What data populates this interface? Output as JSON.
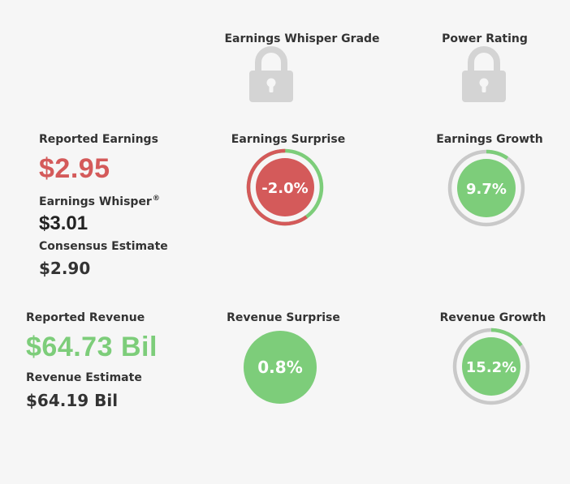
{
  "grades": {
    "whisper_grade_label": "Earnings Whisper Grade",
    "power_rating_label": "Power Rating",
    "lock_icon": "lock-icon"
  },
  "earnings": {
    "reported_label": "Reported Earnings",
    "reported_value": "$2.95",
    "whisper_label": "Earnings Whisper",
    "whisper_mark": "®",
    "whisper_value": "$3.01",
    "consensus_label": "Consensus Estimate",
    "consensus_value": "$2.90",
    "surprise_label": "Earnings Surprise",
    "surprise_value": "-2.0%",
    "surprise_pct": -2.0,
    "growth_label": "Earnings Growth",
    "growth_value": "9.7%",
    "growth_pct": 9.7
  },
  "revenue": {
    "reported_label": "Reported Revenue",
    "reported_value": "$64.73 Bil",
    "estimate_label": "Revenue Estimate",
    "estimate_value": "$64.19 Bil",
    "surprise_label": "Revenue Surprise",
    "surprise_value": "0.8%",
    "surprise_pct": 0.8,
    "growth_label": "Revenue Growth",
    "growth_value": "15.2%",
    "growth_pct": 15.2
  },
  "colors": {
    "red": "#d45a5a",
    "green": "#7dcd7a",
    "ring_gray": "#c9c9c9",
    "lock_gray": "#d4d4d4",
    "text": "#333333",
    "background": "#f6f6f6"
  }
}
